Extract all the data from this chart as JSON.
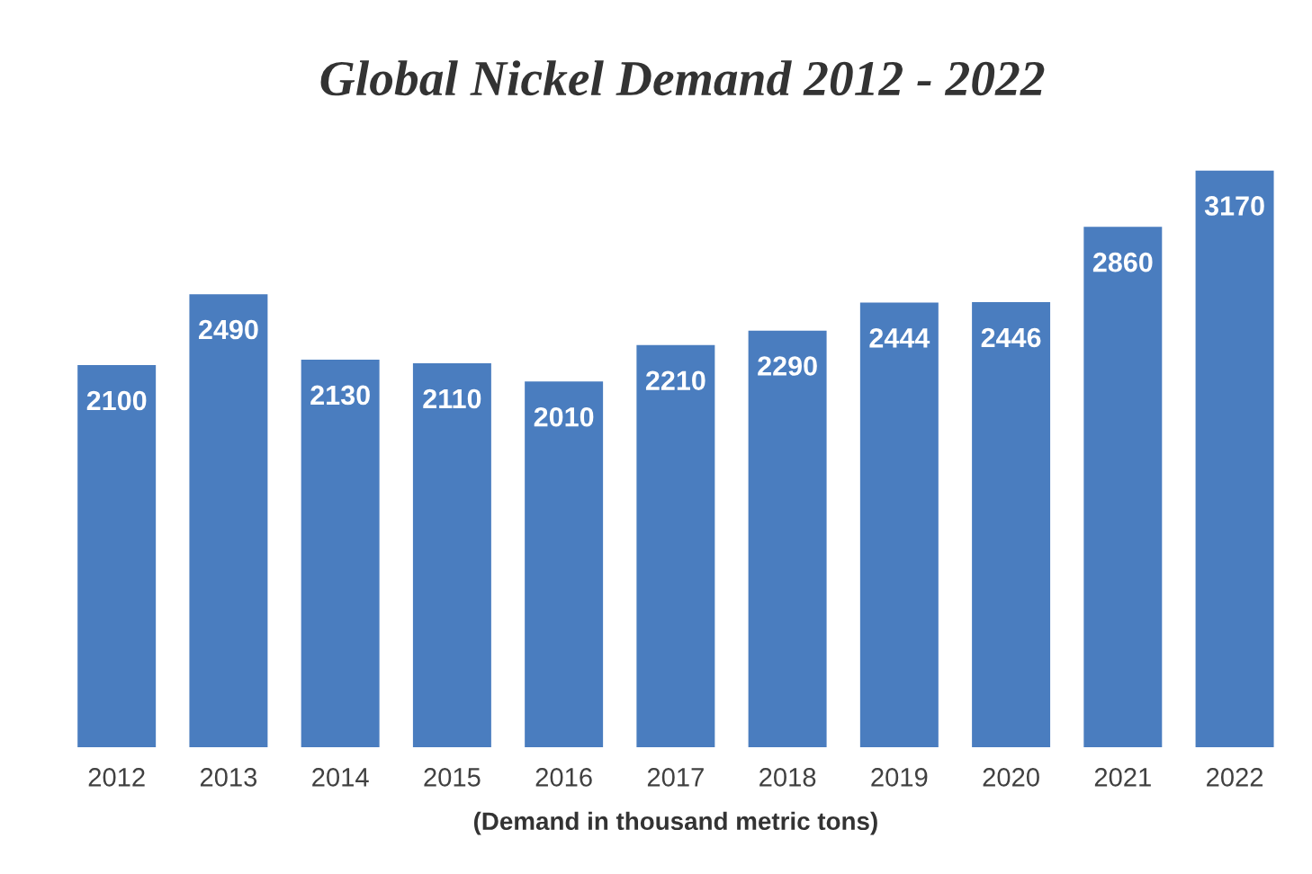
{
  "chart_data": {
    "type": "bar",
    "title": "Global Nickel Demand 2012 - 2022",
    "xlabel": "(Demand in thousand metric tons)",
    "categories": [
      "2012",
      "2013",
      "2014",
      "2015",
      "2016",
      "2017",
      "2018",
      "2019",
      "2020",
      "2021",
      "2022"
    ],
    "values": [
      2100,
      2490,
      2130,
      2110,
      2010,
      2210,
      2290,
      2444,
      2446,
      2860,
      3170
    ],
    "color": "#4a7dbf",
    "data_labels": true,
    "grid": false,
    "legend": false
  }
}
